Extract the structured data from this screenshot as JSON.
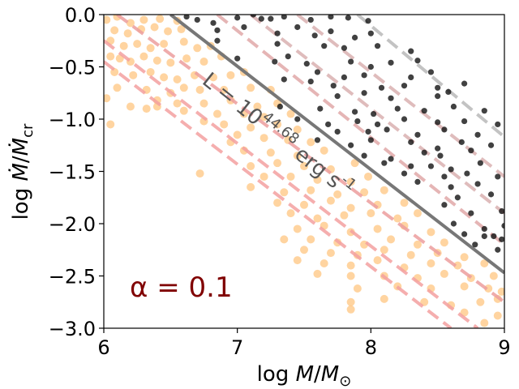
{
  "chart_data": {
    "type": "scatter",
    "title": "",
    "xlabel": "log M/M⊙",
    "ylabel": "log Ṁ/Ṁcr",
    "xlim": [
      6,
      9
    ],
    "ylim": [
      -3.0,
      0.0
    ],
    "xticks": [
      "6",
      "7",
      "8",
      "9"
    ],
    "yticks": [
      "0.0",
      "−0.5",
      "−1.0",
      "−1.5",
      "−2.0",
      "−2.5",
      "−3.0"
    ],
    "grid": false,
    "annotation": {
      "alpha_label": "α = 0.1",
      "luminosity_label": "L = 10^44.68 erg s^-1",
      "alpha_color": "#800000",
      "lum_color": "#555555"
    },
    "lines": [
      {
        "name": "solid-grey",
        "style": "solid",
        "color": "#777777",
        "points": [
          [
            6.5,
            0.0
          ],
          [
            9.0,
            -2.47
          ]
        ]
      },
      {
        "name": "dashed-grey",
        "style": "dashed",
        "color": "#b8b8b8",
        "points": [
          [
            7.9,
            0.0
          ],
          [
            9.0,
            -1.17
          ]
        ]
      },
      {
        "name": "dashed-1",
        "style": "dashed",
        "color": "#d9b0b0",
        "points": [
          [
            7.45,
            0.0
          ],
          [
            9.0,
            -1.55
          ]
        ]
      },
      {
        "name": "dashed-2",
        "style": "dashed",
        "color": "#d9b0b0",
        "points": [
          [
            7.1,
            0.0
          ],
          [
            9.0,
            -1.9
          ]
        ]
      },
      {
        "name": "dashed-3",
        "style": "dashed",
        "color": "#e0a8a8",
        "points": [
          [
            6.85,
            0.0
          ],
          [
            9.0,
            -2.2
          ]
        ]
      },
      {
        "name": "dashed-4",
        "style": "dashed",
        "color": "#ec9e9e",
        "points": [
          [
            6.1,
            0.0
          ],
          [
            9.0,
            -2.75
          ]
        ]
      },
      {
        "name": "dashed-5",
        "style": "dashed",
        "color": "#f3a0a0",
        "points": [
          [
            6.0,
            -0.25
          ],
          [
            8.8,
            -3.0
          ]
        ]
      },
      {
        "name": "dashed-6",
        "style": "dashed",
        "color": "#f3a0a0",
        "points": [
          [
            6.0,
            -0.45
          ],
          [
            8.6,
            -3.0
          ]
        ]
      }
    ],
    "series": [
      {
        "name": "black-points",
        "color": "#111111",
        "points": [
          [
            6.62,
            -0.02
          ],
          [
            6.7,
            -0.05
          ],
          [
            6.82,
            -0.08
          ],
          [
            7.0,
            -0.03
          ],
          [
            7.12,
            0.0
          ],
          [
            7.18,
            -0.04
          ],
          [
            7.25,
            -0.04
          ],
          [
            7.35,
            -0.02
          ],
          [
            7.55,
            -0.05
          ],
          [
            7.7,
            -0.02
          ],
          [
            7.83,
            -0.03
          ],
          [
            7.98,
            -0.06
          ],
          [
            6.85,
            -0.15
          ],
          [
            7.05,
            -0.12
          ],
          [
            7.3,
            -0.18
          ],
          [
            7.45,
            -0.12
          ],
          [
            7.58,
            -0.2
          ],
          [
            7.7,
            -0.16
          ],
          [
            7.88,
            -0.22
          ],
          [
            8.0,
            -0.18
          ],
          [
            6.85,
            -0.25
          ],
          [
            7.3,
            -0.28
          ],
          [
            7.65,
            -0.3
          ],
          [
            7.8,
            -0.32
          ],
          [
            8.05,
            -0.3
          ],
          [
            8.3,
            -0.35
          ],
          [
            7.0,
            -0.42
          ],
          [
            7.28,
            -0.45
          ],
          [
            7.38,
            -0.4
          ],
          [
            7.52,
            -0.47
          ],
          [
            7.85,
            -0.45
          ],
          [
            8.0,
            -0.5
          ],
          [
            8.15,
            -0.46
          ],
          [
            8.35,
            -0.44
          ],
          [
            7.6,
            -0.55
          ],
          [
            7.8,
            -0.6
          ],
          [
            7.95,
            -0.58
          ],
          [
            8.3,
            -0.6
          ],
          [
            8.45,
            -0.55
          ],
          [
            7.35,
            -0.62
          ],
          [
            7.55,
            -0.64
          ],
          [
            7.72,
            -0.68
          ],
          [
            8.08,
            -0.7
          ],
          [
            8.25,
            -0.68
          ],
          [
            8.5,
            -0.7
          ],
          [
            8.7,
            -0.66
          ],
          [
            7.75,
            -0.78
          ],
          [
            7.95,
            -0.75
          ],
          [
            8.15,
            -0.8
          ],
          [
            8.5,
            -0.78
          ],
          [
            8.58,
            -0.74
          ],
          [
            7.32,
            -0.88
          ],
          [
            7.62,
            -0.9
          ],
          [
            7.88,
            -0.93
          ],
          [
            8.02,
            -0.95
          ],
          [
            8.2,
            -0.9
          ],
          [
            8.4,
            -0.92
          ],
          [
            8.62,
            -0.88
          ],
          [
            8.85,
            -0.92
          ],
          [
            7.45,
            -1.0
          ],
          [
            7.68,
            -1.05
          ],
          [
            7.9,
            -1.02
          ],
          [
            8.05,
            -1.05
          ],
          [
            8.25,
            -1.0
          ],
          [
            8.5,
            -1.03
          ],
          [
            8.7,
            -1.02
          ],
          [
            8.95,
            -1.05
          ],
          [
            7.75,
            -1.12
          ],
          [
            7.98,
            -1.12
          ],
          [
            8.12,
            -1.1
          ],
          [
            8.35,
            -1.15
          ],
          [
            8.55,
            -1.1
          ],
          [
            8.8,
            -1.15
          ],
          [
            7.6,
            -1.2
          ],
          [
            7.85,
            -1.25
          ],
          [
            8.0,
            -1.2
          ],
          [
            8.3,
            -1.22
          ],
          [
            8.5,
            -1.28
          ],
          [
            8.68,
            -1.22
          ],
          [
            8.9,
            -1.25
          ],
          [
            7.95,
            -1.35
          ],
          [
            8.15,
            -1.38
          ],
          [
            8.4,
            -1.32
          ],
          [
            8.52,
            -1.35
          ],
          [
            8.75,
            -1.3
          ],
          [
            8.1,
            -1.42
          ],
          [
            8.3,
            -1.45
          ],
          [
            8.45,
            -1.45
          ],
          [
            8.6,
            -1.48
          ],
          [
            8.82,
            -1.42
          ],
          [
            8.25,
            -1.52
          ],
          [
            8.55,
            -1.55
          ],
          [
            8.72,
            -1.52
          ],
          [
            8.95,
            -1.55
          ],
          [
            8.35,
            -1.6
          ],
          [
            8.6,
            -1.65
          ],
          [
            8.8,
            -1.62
          ],
          [
            8.65,
            -1.75
          ],
          [
            8.9,
            -1.72
          ],
          [
            8.55,
            -1.82
          ],
          [
            8.75,
            -1.9
          ],
          [
            8.98,
            -1.88
          ],
          [
            8.62,
            -2.0
          ],
          [
            8.85,
            -2.05
          ],
          [
            9.0,
            -2.02
          ],
          [
            8.7,
            -2.1
          ],
          [
            8.85,
            -2.12
          ],
          [
            8.92,
            -2.12
          ],
          [
            8.98,
            -2.15
          ],
          [
            8.78,
            -2.2
          ],
          [
            8.95,
            -2.25
          ]
        ]
      },
      {
        "name": "orange-points",
        "color": "#ffc680",
        "points": [
          [
            6.02,
            -0.05
          ],
          [
            6.1,
            -0.02
          ],
          [
            6.2,
            -0.08
          ],
          [
            6.3,
            -0.05
          ],
          [
            6.42,
            -0.04
          ],
          [
            6.55,
            -0.06
          ],
          [
            6.08,
            -0.15
          ],
          [
            6.18,
            -0.18
          ],
          [
            6.28,
            -0.14
          ],
          [
            6.38,
            -0.12
          ],
          [
            6.48,
            -0.16
          ],
          [
            6.58,
            -0.14
          ],
          [
            6.05,
            -0.25
          ],
          [
            6.15,
            -0.3
          ],
          [
            6.25,
            -0.28
          ],
          [
            6.35,
            -0.32
          ],
          [
            6.45,
            -0.28
          ],
          [
            6.6,
            -0.26
          ],
          [
            6.7,
            -0.32
          ],
          [
            6.8,
            -0.3
          ],
          [
            6.05,
            -0.4
          ],
          [
            6.12,
            -0.42
          ],
          [
            6.2,
            -0.45
          ],
          [
            6.3,
            -0.4
          ],
          [
            6.4,
            -0.44
          ],
          [
            6.5,
            -0.46
          ],
          [
            6.62,
            -0.42
          ],
          [
            6.75,
            -0.45
          ],
          [
            6.88,
            -0.4
          ],
          [
            6.08,
            -0.55
          ],
          [
            6.22,
            -0.58
          ],
          [
            6.35,
            -0.55
          ],
          [
            6.45,
            -0.6
          ],
          [
            6.55,
            -0.62
          ],
          [
            6.68,
            -0.58
          ],
          [
            6.82,
            -0.6
          ],
          [
            6.95,
            -0.58
          ],
          [
            7.05,
            -0.55
          ],
          [
            6.1,
            -0.7
          ],
          [
            6.32,
            -0.72
          ],
          [
            6.5,
            -0.75
          ],
          [
            6.6,
            -0.7
          ],
          [
            6.72,
            -0.72
          ],
          [
            6.9,
            -0.72
          ],
          [
            7.1,
            -0.7
          ],
          [
            7.25,
            -0.72
          ],
          [
            6.02,
            -0.8
          ],
          [
            6.4,
            -0.82
          ],
          [
            6.55,
            -0.85
          ],
          [
            6.75,
            -0.85
          ],
          [
            6.95,
            -0.82
          ],
          [
            7.15,
            -0.88
          ],
          [
            7.3,
            -0.85
          ],
          [
            6.2,
            -0.88
          ],
          [
            6.32,
            -0.9
          ],
          [
            6.4,
            -0.88
          ],
          [
            6.6,
            -0.92
          ],
          [
            6.85,
            -0.95
          ],
          [
            7.05,
            -0.95
          ],
          [
            7.2,
            -0.98
          ],
          [
            7.4,
            -0.95
          ],
          [
            6.05,
            -1.05
          ],
          [
            6.75,
            -1.02
          ],
          [
            6.9,
            -1.05
          ],
          [
            7.1,
            -1.08
          ],
          [
            7.3,
            -1.05
          ],
          [
            7.45,
            -1.1
          ],
          [
            7.0,
            -1.15
          ],
          [
            7.2,
            -1.18
          ],
          [
            7.38,
            -1.2
          ],
          [
            7.55,
            -1.22
          ],
          [
            6.95,
            -1.22
          ],
          [
            7.05,
            -1.3
          ],
          [
            7.25,
            -1.32
          ],
          [
            7.45,
            -1.35
          ],
          [
            7.65,
            -1.3
          ],
          [
            7.1,
            -1.45
          ],
          [
            7.3,
            -1.42
          ],
          [
            7.5,
            -1.45
          ],
          [
            7.7,
            -1.48
          ],
          [
            7.88,
            -1.42
          ],
          [
            6.72,
            -1.52
          ],
          [
            7.2,
            -1.55
          ],
          [
            7.4,
            -1.55
          ],
          [
            7.6,
            -1.58
          ],
          [
            7.85,
            -1.6
          ],
          [
            7.98,
            -1.55
          ],
          [
            7.1,
            -1.65
          ],
          [
            7.35,
            -1.7
          ],
          [
            7.55,
            -1.68
          ],
          [
            7.75,
            -1.72
          ],
          [
            7.95,
            -1.7
          ],
          [
            8.1,
            -1.68
          ],
          [
            7.3,
            -1.8
          ],
          [
            7.5,
            -1.82
          ],
          [
            7.7,
            -1.78
          ],
          [
            7.85,
            -1.85
          ],
          [
            8.05,
            -1.82
          ],
          [
            8.25,
            -1.8
          ],
          [
            7.4,
            -1.9
          ],
          [
            7.6,
            -1.95
          ],
          [
            7.8,
            -1.92
          ],
          [
            8.0,
            -1.9
          ],
          [
            8.2,
            -1.95
          ],
          [
            8.35,
            -1.9
          ],
          [
            7.45,
            -2.05
          ],
          [
            7.65,
            -2.02
          ],
          [
            7.85,
            -2.08
          ],
          [
            8.05,
            -2.05
          ],
          [
            8.25,
            -2.02
          ],
          [
            8.45,
            -2.08
          ],
          [
            7.35,
            -2.15
          ],
          [
            7.55,
            -2.15
          ],
          [
            7.75,
            -2.18
          ],
          [
            7.95,
            -2.2
          ],
          [
            8.15,
            -2.15
          ],
          [
            8.35,
            -2.2
          ],
          [
            8.55,
            -2.18
          ],
          [
            7.5,
            -2.25
          ],
          [
            7.7,
            -2.28
          ],
          [
            7.9,
            -2.3
          ],
          [
            8.1,
            -2.25
          ],
          [
            8.3,
            -2.3
          ],
          [
            8.5,
            -2.28
          ],
          [
            8.7,
            -2.32
          ],
          [
            7.45,
            -2.35
          ],
          [
            7.65,
            -2.38
          ],
          [
            7.85,
            -2.4
          ],
          [
            8.05,
            -2.35
          ],
          [
            8.25,
            -2.42
          ],
          [
            8.45,
            -2.38
          ],
          [
            8.65,
            -2.4
          ],
          [
            8.85,
            -2.38
          ],
          [
            7.6,
            -2.48
          ],
          [
            7.85,
            -2.5
          ],
          [
            8.1,
            -2.5
          ],
          [
            8.35,
            -2.52
          ],
          [
            8.55,
            -2.48
          ],
          [
            8.75,
            -2.52
          ],
          [
            8.92,
            -2.5
          ],
          [
            7.9,
            -2.62
          ],
          [
            8.2,
            -2.6
          ],
          [
            8.45,
            -2.62
          ],
          [
            8.7,
            -2.6
          ],
          [
            8.88,
            -2.62
          ],
          [
            8.98,
            -2.65
          ],
          [
            7.85,
            -2.75
          ],
          [
            8.1,
            -2.72
          ],
          [
            8.4,
            -2.75
          ],
          [
            8.6,
            -2.78
          ],
          [
            8.82,
            -2.75
          ],
          [
            8.95,
            -2.72
          ],
          [
            8.7,
            -2.85
          ],
          [
            8.95,
            -2.88
          ],
          [
            7.85,
            -2.82
          ],
          [
            8.85,
            -2.95
          ]
        ]
      }
    ]
  }
}
